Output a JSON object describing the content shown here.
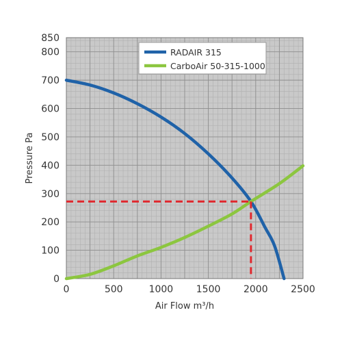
{
  "chart_data": {
    "type": "line",
    "title": "",
    "xlabel": "Air Flow m³/h",
    "ylabel": "Pressure Pa",
    "xlim": [
      0,
      2500
    ],
    "ylim": [
      0,
      850
    ],
    "x_ticks": [
      0,
      500,
      1000,
      1500,
      2000,
      2500
    ],
    "y_ticks": [
      0,
      100,
      200,
      300,
      400,
      500,
      600,
      700,
      800,
      850
    ],
    "grid": true,
    "legend_position": "top-right",
    "series": [
      {
        "name": "RADAIR 315",
        "color": "#1f62a8",
        "x": [
          0,
          250,
          500,
          750,
          1000,
          1250,
          1500,
          1750,
          1950,
          2100,
          2200,
          2300
        ],
        "y": [
          700,
          683,
          655,
          617,
          570,
          512,
          440,
          355,
          272,
          180,
          115,
          0
        ]
      },
      {
        "name": "CarboAir 50-315-1000",
        "color": "#8cc63f",
        "x": [
          0,
          250,
          500,
          750,
          1000,
          1250,
          1500,
          1750,
          1950,
          2250,
          2500
        ],
        "y": [
          0,
          15,
          45,
          80,
          110,
          145,
          185,
          228,
          272,
          335,
          398
        ]
      }
    ],
    "annotations": [
      {
        "type": "operating-point",
        "color": "#e0282e",
        "x": 1950,
        "y": 272
      }
    ]
  }
}
